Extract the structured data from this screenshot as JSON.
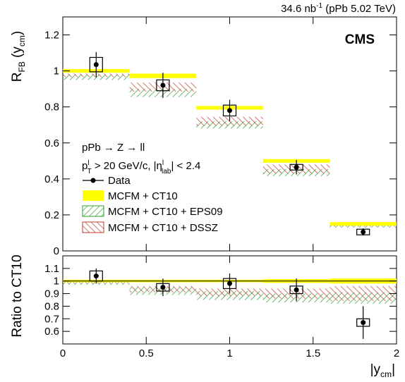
{
  "chart_data": {
    "type": "scatter",
    "header": {
      "lumi_base": "34.6 nb",
      "lumi_sup": "-1",
      "lumi_rest": " (pPb 5.02 TeV)"
    },
    "cms_label": "CMS",
    "info": {
      "process": "pPb → Z → ll",
      "cut_pt_base": "p",
      "cut_pt_sup": "l",
      "cut_pt_sub": "T",
      "cut_pt_rest": " > 20 GeV/c, |η",
      "cut_eta_sup": "l",
      "cut_eta_sub": "lab",
      "cut_eta_rest": "| < 2.4"
    },
    "legend": {
      "data": "Data",
      "ct10": "MCFM + CT10",
      "eps09": "MCFM + CT10 + EPS09",
      "dssz": "MCFM + CT10 + DSSZ"
    },
    "colors": {
      "ct10": "#ffff00",
      "eps09": "#2e9e2e",
      "dssz": "#c0392b",
      "data": "#000000"
    },
    "bins": [
      [
        0,
        0.4
      ],
      [
        0.4,
        0.8
      ],
      [
        0.8,
        1.2
      ],
      [
        1.2,
        1.6
      ],
      [
        1.6,
        2.0
      ]
    ],
    "xlim": [
      0,
      2
    ],
    "xticks": [
      "0",
      "0.5",
      "1",
      "1.5",
      "2"
    ],
    "xtick_values": [
      0,
      0.5,
      1,
      1.5,
      2
    ],
    "xlabel_base": "|y",
    "xlabel_sub": "cm",
    "xlabel_end": "|",
    "top": {
      "ylabel_base": "R",
      "ylabel_sub": "FB",
      "ylabel_rest": " (y",
      "ylabel_sub2": "cm",
      "ylabel_end": ")",
      "ylim": [
        0,
        1.3
      ],
      "yticks": [
        "0",
        "0.2",
        "0.4",
        "0.6",
        "0.8",
        "1",
        "1.2"
      ],
      "ytick_values": [
        0,
        0.2,
        0.4,
        0.6,
        0.8,
        1.0,
        1.2
      ],
      "data": {
        "x": [
          0.2,
          0.6,
          1.0,
          1.4,
          1.8
        ],
        "y": [
          1.035,
          0.92,
          0.78,
          0.465,
          0.105
        ],
        "stat_err": [
          0.07,
          0.07,
          0.06,
          0.04,
          0.02
        ],
        "sys_err": [
          0.04,
          0.03,
          0.03,
          0.015,
          0.005
        ]
      },
      "ct10": {
        "low": [
          0.99,
          0.96,
          0.785,
          0.49,
          0.14
        ],
        "high": [
          1.01,
          0.985,
          0.805,
          0.51,
          0.16
        ]
      },
      "eps09": {
        "low": [
          0.95,
          0.855,
          0.68,
          0.415,
          0.13
        ],
        "high": [
          0.98,
          0.9,
          0.72,
          0.455,
          0.145
        ]
      },
      "dssz": {
        "low": [
          0.965,
          0.885,
          0.695,
          0.43,
          0.135
        ],
        "high": [
          0.985,
          0.935,
          0.745,
          0.48,
          0.152
        ]
      }
    },
    "ratio": {
      "ylabel": "Ratio to CT10",
      "ylim": [
        0.5,
        1.2
      ],
      "yticks": [
        "0.6",
        "0.7",
        "0.8",
        "0.9",
        "1",
        "1.1"
      ],
      "ytick_values": [
        0.6,
        0.7,
        0.8,
        0.9,
        1.0,
        1.1
      ],
      "data": {
        "x": [
          0.2,
          0.6,
          1.0,
          1.4,
          1.8
        ],
        "y": [
          1.04,
          0.95,
          0.98,
          0.93,
          0.67
        ],
        "stat_err": [
          0.06,
          0.07,
          0.08,
          0.09,
          0.13
        ],
        "sys_err": [
          0.04,
          0.03,
          0.04,
          0.03,
          0.03
        ]
      },
      "ct10": {
        "low": [
          0.99,
          0.99,
          0.99,
          0.985,
          0.98
        ],
        "high": [
          1.01,
          1.01,
          1.01,
          1.015,
          1.02
        ]
      },
      "eps09": {
        "low": [
          0.97,
          0.89,
          0.85,
          0.83,
          0.82
        ],
        "high": [
          1.0,
          0.95,
          0.92,
          0.9,
          0.91
        ]
      },
      "dssz": {
        "low": [
          0.98,
          0.91,
          0.88,
          0.86,
          0.84
        ],
        "high": [
          1.0,
          0.96,
          0.94,
          0.94,
          0.96
        ]
      }
    }
  }
}
